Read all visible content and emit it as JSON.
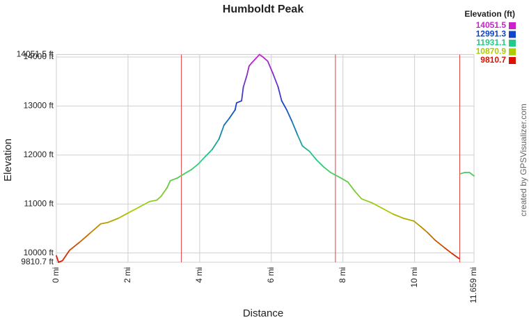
{
  "chart_data": {
    "type": "line",
    "title": "Humboldt Peak",
    "x_label": "Distance",
    "y_label": "Elevation",
    "credit": "created by GPSVisualizer.com",
    "xlim": [
      0,
      11.659
    ],
    "ylim": [
      9810.7,
      14051.5
    ],
    "xticks": [
      {
        "value": 0,
        "label": "0 mi"
      },
      {
        "value": 2,
        "label": "2 mi"
      },
      {
        "value": 4,
        "label": "4 mi"
      },
      {
        "value": 6,
        "label": "6 mi"
      },
      {
        "value": 8,
        "label": "8 mi"
      },
      {
        "value": 10,
        "label": "10 mi"
      },
      {
        "value": 11.659,
        "label": "11.659 mi"
      }
    ],
    "yticks": [
      {
        "value": 9810.7,
        "label": "9810.7 ft"
      },
      {
        "value": 10000,
        "label": "10000 ft"
      },
      {
        "value": 11000,
        "label": "11000 ft"
      },
      {
        "value": 12000,
        "label": "12000 ft"
      },
      {
        "value": 13000,
        "label": "13000 ft"
      },
      {
        "value": 14000,
        "label": "14000 ft"
      },
      {
        "value": 14051.5,
        "label": "14051.5 ft"
      }
    ],
    "grid": true,
    "x_markers": [
      3.49,
      7.79,
      11.26
    ],
    "marker_color": "#e04040",
    "color_scale": {
      "title": "Elevation (ft)",
      "values": [
        14051.5,
        12991.3,
        11931.1,
        10870.9,
        9810.7
      ],
      "colors": [
        "#cc22cc",
        "#1144cc",
        "#22cc88",
        "#aacc00",
        "#dd1100"
      ]
    },
    "x": [
      0,
      0.06,
      0.17,
      0.37,
      0.66,
      0.95,
      1.24,
      1.44,
      1.73,
      2.02,
      2.31,
      2.6,
      2.8,
      2.93,
      3.09,
      3.18,
      3.38,
      3.57,
      3.77,
      3.96,
      4.16,
      4.35,
      4.54,
      4.68,
      4.83,
      4.99,
      5.03,
      5.17,
      5.22,
      5.32,
      5.38,
      5.46,
      5.57,
      5.67,
      5.77,
      5.9,
      6.04,
      6.19,
      6.29,
      6.43,
      6.58,
      6.74,
      6.87,
      7.07,
      7.26,
      7.46,
      7.65,
      7.94,
      8.14,
      8.33,
      8.52,
      8.82,
      9.11,
      9.4,
      9.69,
      9.98,
      10.17,
      10.37,
      10.56,
      10.85,
      11.05,
      11.24,
      null,
      11.28,
      11.4,
      11.53,
      11.659
    ],
    "series": [
      {
        "name": "Elevation",
        "values": [
          9943,
          9810.7,
          9844,
          10057,
          10227,
          10411,
          10596,
          10624,
          10709,
          10823,
          10936,
          11050,
          11078,
          11163,
          11333,
          11475,
          11532,
          11617,
          11702,
          11816,
          11972,
          12113,
          12326,
          12610,
          12752,
          12922,
          13064,
          13106,
          13390,
          13631,
          13816,
          13887,
          13972,
          14051.5,
          14000,
          13915,
          13674,
          13390,
          13106,
          12922,
          12681,
          12397,
          12184,
          12071,
          11901,
          11759,
          11645,
          11532,
          11447,
          11262,
          11106,
          11021,
          10908,
          10794,
          10709,
          10652,
          10539,
          10411,
          10270,
          10099,
          9986,
          9887,
          null,
          11617,
          11645,
          11645,
          11574
        ]
      }
    ]
  }
}
